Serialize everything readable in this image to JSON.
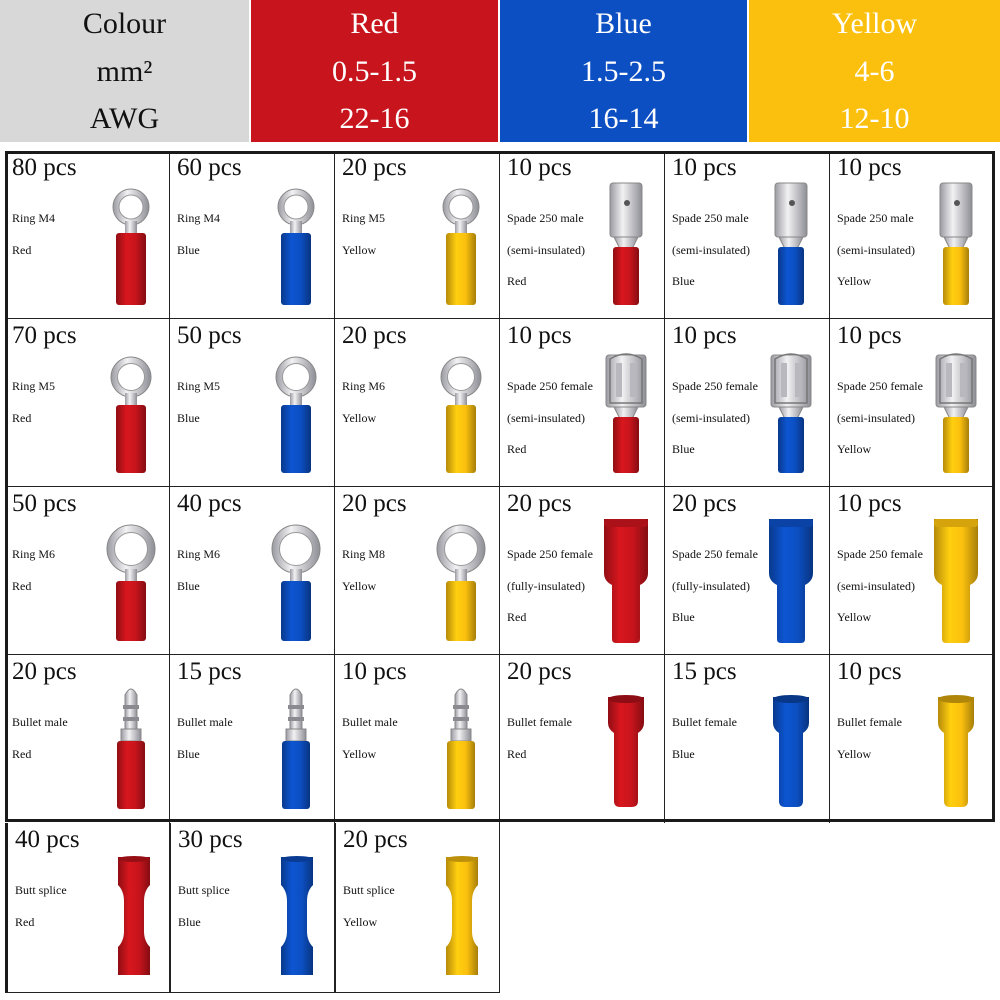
{
  "spec_table": {
    "rows": [
      {
        "label": "Colour",
        "values": [
          "Red",
          "Blue",
          "Yellow"
        ]
      },
      {
        "label": "mm²",
        "values": [
          "0.5-1.5",
          "1.5-2.5",
          "4-6"
        ]
      },
      {
        "label": "AWG",
        "values": [
          "22-16",
          "16-14",
          "12-10"
        ]
      }
    ]
  },
  "colors": {
    "red": "#c8141c",
    "blue": "#0c4fc2",
    "yellow": "#fbc00e",
    "label_bg": "#d8d8d8",
    "metal": "#c9c9cf"
  },
  "grid": {
    "cells": [
      {
        "qty": "80 pcs",
        "lines": [
          "Ring M4",
          "Red"
        ],
        "color": "red",
        "icon": "ring-terminal-icon"
      },
      {
        "qty": "60 pcs",
        "lines": [
          "Ring M4",
          "Blue"
        ],
        "color": "blue",
        "icon": "ring-terminal-icon"
      },
      {
        "qty": "20 pcs",
        "lines": [
          "Ring M5",
          "Yellow"
        ],
        "color": "yellow",
        "icon": "ring-terminal-icon"
      },
      {
        "qty": "10 pcs",
        "lines": [
          "Spade 250 male",
          "(semi-insulated)",
          "Red"
        ],
        "color": "red",
        "icon": "spade-male-icon"
      },
      {
        "qty": "10 pcs",
        "lines": [
          "Spade 250 male",
          "(semi-insulated)",
          "Blue"
        ],
        "color": "blue",
        "icon": "spade-male-icon"
      },
      {
        "qty": "10 pcs",
        "lines": [
          "Spade 250 male",
          "(semi-insulated)",
          "Yellow"
        ],
        "color": "yellow",
        "icon": "spade-male-icon"
      },
      {
        "qty": "70 pcs",
        "lines": [
          "Ring M5",
          "Red"
        ],
        "color": "red",
        "icon": "ring-terminal-icon"
      },
      {
        "qty": "50 pcs",
        "lines": [
          "Ring M5",
          "Blue"
        ],
        "color": "blue",
        "icon": "ring-terminal-icon"
      },
      {
        "qty": "20 pcs",
        "lines": [
          "Ring M6",
          "Yellow"
        ],
        "color": "yellow",
        "icon": "ring-terminal-icon"
      },
      {
        "qty": "10 pcs",
        "lines": [
          "Spade 250 female",
          "(semi-insulated)",
          "Red"
        ],
        "color": "red",
        "icon": "spade-female-icon"
      },
      {
        "qty": "10 pcs",
        "lines": [
          "Spade 250 female",
          "(semi-insulated)",
          "Blue"
        ],
        "color": "blue",
        "icon": "spade-female-icon"
      },
      {
        "qty": "10 pcs",
        "lines": [
          "Spade 250 female",
          "(semi-insulated)",
          "Yellow"
        ],
        "color": "yellow",
        "icon": "spade-female-icon"
      },
      {
        "qty": "50 pcs",
        "lines": [
          "Ring M6",
          "Red"
        ],
        "color": "red",
        "icon": "ring-terminal-icon"
      },
      {
        "qty": "40 pcs",
        "lines": [
          "Ring M6",
          "Blue"
        ],
        "color": "blue",
        "icon": "ring-terminal-icon"
      },
      {
        "qty": "20 pcs",
        "lines": [
          "Ring M8",
          "Yellow"
        ],
        "color": "yellow",
        "icon": "ring-terminal-icon"
      },
      {
        "qty": "20 pcs",
        "lines": [
          "Spade 250 female",
          "(fully-insulated)",
          "Red"
        ],
        "color": "red",
        "icon": "spade-female-insulated-icon"
      },
      {
        "qty": "20 pcs",
        "lines": [
          "Spade 250 female",
          "(fully-insulated)",
          "Blue"
        ],
        "color": "blue",
        "icon": "spade-female-insulated-icon"
      },
      {
        "qty": "10 pcs",
        "lines": [
          "Spade 250 female",
          "(semi-insulated)",
          "Yellow"
        ],
        "color": "yellow",
        "icon": "spade-female-insulated-icon"
      },
      {
        "qty": "20 pcs",
        "lines": [
          "Bullet male",
          "Red"
        ],
        "color": "red",
        "icon": "bullet-male-icon"
      },
      {
        "qty": "15 pcs",
        "lines": [
          "Bullet male",
          "Blue"
        ],
        "color": "blue",
        "icon": "bullet-male-icon"
      },
      {
        "qty": "10 pcs",
        "lines": [
          "Bullet male",
          "Yellow"
        ],
        "color": "yellow",
        "icon": "bullet-male-icon"
      },
      {
        "qty": "20 pcs",
        "lines": [
          "Bullet female",
          "Red"
        ],
        "color": "red",
        "icon": "bullet-female-icon"
      },
      {
        "qty": "15 pcs",
        "lines": [
          "Bullet female",
          "Blue"
        ],
        "color": "blue",
        "icon": "bullet-female-icon"
      },
      {
        "qty": "10 pcs",
        "lines": [
          "Bullet female",
          "Yellow"
        ],
        "color": "yellow",
        "icon": "bullet-female-icon"
      },
      {
        "qty": "40 pcs",
        "lines": [
          "Butt splice",
          "Red"
        ],
        "color": "red",
        "icon": "butt-splice-icon"
      },
      {
        "qty": "30 pcs",
        "lines": [
          "Butt splice",
          "Blue"
        ],
        "color": "blue",
        "icon": "butt-splice-icon"
      },
      {
        "qty": "20 pcs",
        "lines": [
          "Butt splice",
          "Yellow"
        ],
        "color": "yellow",
        "icon": "butt-splice-icon"
      }
    ]
  }
}
